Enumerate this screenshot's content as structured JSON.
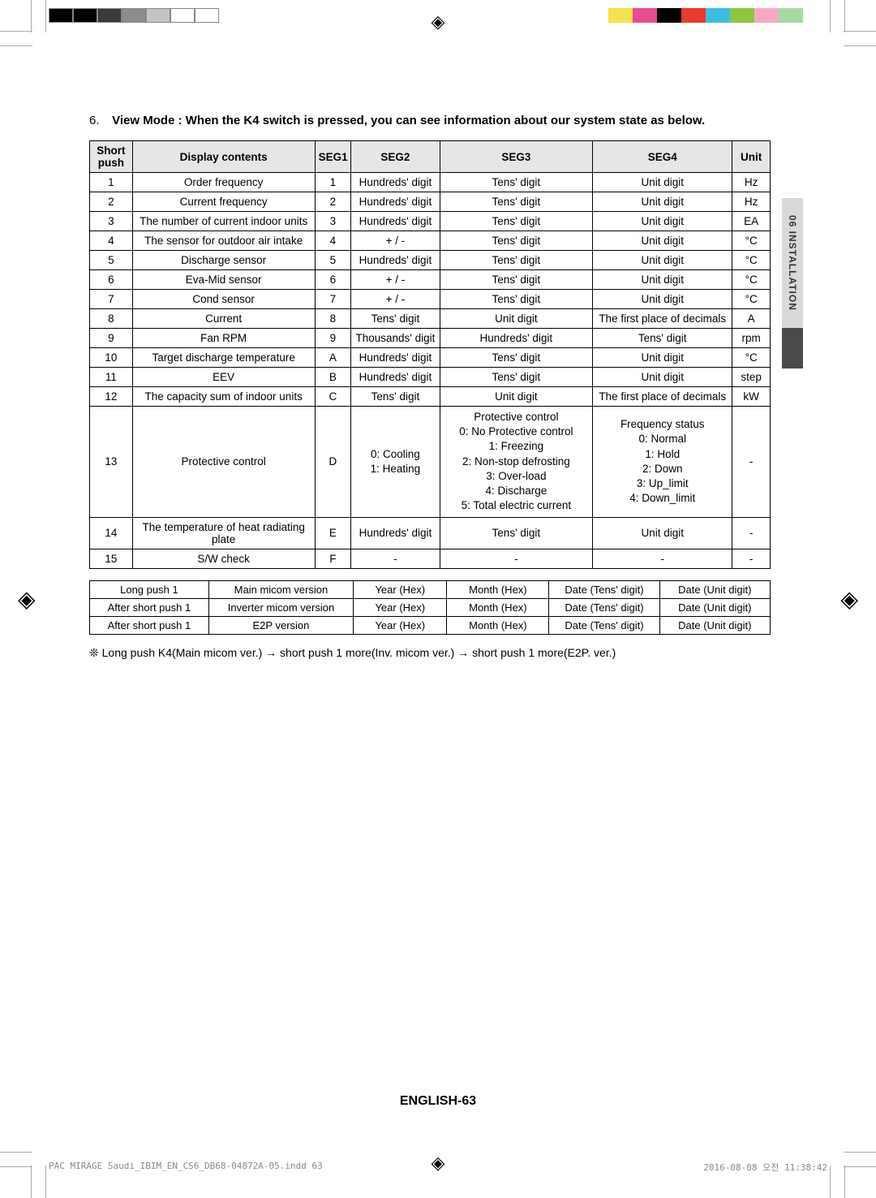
{
  "heading": {
    "number": "6.",
    "text": "View Mode : When the K4 switch is pressed, you can see information about our system state as below."
  },
  "table1": {
    "headers": [
      "Short push",
      "Display contents",
      "SEG1",
      "SEG2",
      "SEG3",
      "SEG4",
      "Unit"
    ],
    "rows": [
      [
        "1",
        "Order frequency",
        "1",
        "Hundreds' digit",
        "Tens' digit",
        "Unit digit",
        "Hz"
      ],
      [
        "2",
        "Current frequency",
        "2",
        "Hundreds' digit",
        "Tens' digit",
        "Unit digit",
        "Hz"
      ],
      [
        "3",
        "The number of current indoor units",
        "3",
        "Hundreds' digit",
        "Tens' digit",
        "Unit digit",
        "EA"
      ],
      [
        "4",
        "The sensor for outdoor air intake",
        "4",
        "+ / -",
        "Tens' digit",
        "Unit digit",
        "°C"
      ],
      [
        "5",
        "Discharge sensor",
        "5",
        "Hundreds' digit",
        "Tens' digit",
        "Unit digit",
        "°C"
      ],
      [
        "6",
        "Eva-Mid sensor",
        "6",
        "+ / -",
        "Tens' digit",
        "Unit digit",
        "°C"
      ],
      [
        "7",
        "Cond sensor",
        "7",
        "+ / -",
        "Tens' digit",
        "Unit digit",
        "°C"
      ],
      [
        "8",
        "Current",
        "8",
        "Tens' digit",
        "Unit digit",
        "The first place of decimals",
        "A"
      ],
      [
        "9",
        "Fan RPM",
        "9",
        "Thousands' digit",
        "Hundreds' digit",
        "Tens' digit",
        "rpm"
      ],
      [
        "10",
        "Target discharge temperature",
        "A",
        "Hundreds' digit",
        "Tens' digit",
        "Unit digit",
        "°C"
      ],
      [
        "11",
        "EEV",
        "B",
        "Hundreds' digit",
        "Tens' digit",
        "Unit digit",
        "step"
      ],
      [
        "12",
        "The capacity sum of indoor units",
        "C",
        "Tens' digit",
        "Unit digit",
        "The first place of decimals",
        "kW"
      ],
      [
        "13",
        "Protective control",
        "D",
        "0: Cooling\n1: Heating",
        "Protective control\n0: No Protective control\n1: Freezing\n2: Non-stop defrosting\n3: Over-load\n4: Discharge\n5: Total electric current",
        "Frequency status\n0: Normal\n1: Hold\n2: Down\n3: Up_limit\n4: Down_limit",
        "-"
      ],
      [
        "14",
        "The temperature of heat radiating plate",
        "E",
        "Hundreds' digit",
        "Tens' digit",
        "Unit digit",
        "-"
      ],
      [
        "15",
        "S/W check",
        "F",
        "-",
        "-",
        "-",
        "-"
      ]
    ]
  },
  "table2": {
    "rows": [
      [
        "Long push 1",
        "Main micom version",
        "Year (Hex)",
        "Month (Hex)",
        "Date (Tens' digit)",
        "Date (Unit digit)"
      ],
      [
        "After short push 1",
        "Inverter micom version",
        "Year (Hex)",
        "Month (Hex)",
        "Date (Tens' digit)",
        "Date (Unit digit)"
      ],
      [
        "After short push 1",
        "E2P version",
        "Year (Hex)",
        "Month (Hex)",
        "Date (Tens' digit)",
        "Date (Unit digit)"
      ]
    ]
  },
  "footnote": "❊  Long push K4(Main micom ver.) → short push 1 more(Inv. micom ver.) → short push 1 more(E2P. ver.)",
  "sideTab": "06   INSTALLATION",
  "pageFooter": "ENGLISH-63",
  "printFooter": {
    "left": "PAC MIRAGE Saudi_IBIM_EN_CS6_DB68-04872A-05.indd   63",
    "right": "2016-08-08   오전 11:38:42"
  },
  "colors": {
    "cmyk_left": [
      "#000000",
      "#000000",
      "#3a3a3a",
      "#8c8c8c",
      "#c4c4c4",
      "#ffffff",
      "#ffffff"
    ],
    "cmyk_right": [
      "#f4e24c",
      "#e84c8f",
      "#000000",
      "#e63b2e",
      "#3dbde0",
      "#8cc63f",
      "#f7a9c4",
      "#a9d9a3"
    ]
  }
}
